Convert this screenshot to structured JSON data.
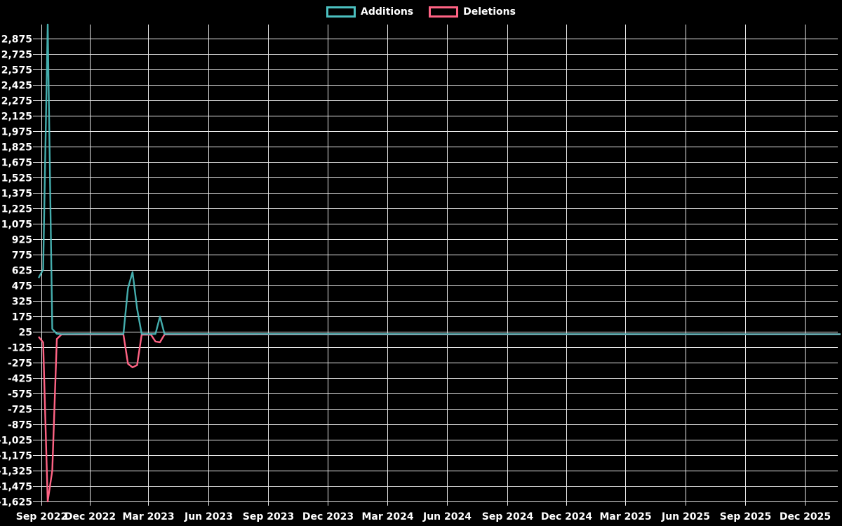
{
  "page": {
    "background": "#000000"
  },
  "legend": {
    "position": "top",
    "items": [
      {
        "label": "Additions",
        "color": "#4bc0c0"
      },
      {
        "label": "Deletions",
        "color": "#ff6384"
      }
    ]
  },
  "chart_data": {
    "type": "line",
    "title": "",
    "legend_position": "top",
    "grid": true,
    "background": "#000000",
    "grid_color": "#e8e8e8",
    "text_color": "#ffffff",
    "x_axis": {
      "type": "time",
      "start": "2022-09-14",
      "end": "2026-01-25",
      "ticks": [
        {
          "label": "Sep 2022",
          "date": "2022-09-18"
        },
        {
          "label": "Dec 2022",
          "date": "2022-12-01"
        },
        {
          "label": "Mar 2023",
          "date": "2023-03-01"
        },
        {
          "label": "Jun 2023",
          "date": "2023-06-01"
        },
        {
          "label": "Sep 2023",
          "date": "2023-09-01"
        },
        {
          "label": "Dec 2023",
          "date": "2023-12-01"
        },
        {
          "label": "Mar 2024",
          "date": "2024-03-01"
        },
        {
          "label": "Jun 2024",
          "date": "2024-06-01"
        },
        {
          "label": "Sep 2024",
          "date": "2024-09-01"
        },
        {
          "label": "Dec 2024",
          "date": "2024-12-01"
        },
        {
          "label": "Mar 2025",
          "date": "2025-03-01"
        },
        {
          "label": "Jun 2025",
          "date": "2025-06-01"
        },
        {
          "label": "Sep 2025",
          "date": "2025-09-01"
        },
        {
          "label": "Dec 2025",
          "date": "2025-12-01"
        }
      ]
    },
    "y_axis": {
      "min": -1625,
      "max": 3010,
      "tick_step": 150,
      "tick_labels": [
        "2,875",
        "2,725",
        "2,575",
        "2,425",
        "2,275",
        "2,125",
        "1,975",
        "1,825",
        "1,675",
        "1,525",
        "1,375",
        "1,225",
        "1,075",
        "925",
        "775",
        "625",
        "475",
        "325",
        "175",
        "25",
        "-125",
        "-275",
        "-425",
        "-575",
        "-725",
        "-875",
        "-1,025",
        "-1,175",
        "-1,325",
        "-1,475",
        "-1,625"
      ]
    },
    "series": [
      {
        "name": "Additions",
        "color": "#4bc0c0",
        "points": [
          [
            "2022-09-14",
            547
          ],
          [
            "2022-09-21",
            629
          ],
          [
            "2022-09-28",
            3010
          ],
          [
            "2022-10-05",
            52
          ],
          [
            "2022-10-12",
            4
          ],
          [
            "2022-10-19",
            1
          ],
          [
            "2023-01-22",
            2
          ],
          [
            "2023-01-29",
            448
          ],
          [
            "2023-02-05",
            604
          ],
          [
            "2023-02-12",
            249
          ],
          [
            "2023-02-19",
            3
          ],
          [
            "2023-03-05",
            2
          ],
          [
            "2023-03-12",
            2
          ],
          [
            "2023-03-19",
            172
          ],
          [
            "2023-03-26",
            2
          ],
          [
            "2026-01-25",
            0
          ]
        ]
      },
      {
        "name": "Deletions",
        "color": "#ff6384",
        "points": [
          [
            "2022-09-14",
            -24
          ],
          [
            "2022-09-21",
            -80
          ],
          [
            "2022-09-28",
            -1625
          ],
          [
            "2022-10-05",
            -1325
          ],
          [
            "2022-10-12",
            -45
          ],
          [
            "2022-10-19",
            -2
          ],
          [
            "2023-01-22",
            -2
          ],
          [
            "2023-01-29",
            -287
          ],
          [
            "2023-02-05",
            -322
          ],
          [
            "2023-02-12",
            -300
          ],
          [
            "2023-02-19",
            -4
          ],
          [
            "2023-03-05",
            -3
          ],
          [
            "2023-03-12",
            -70
          ],
          [
            "2023-03-19",
            -77
          ],
          [
            "2023-03-26",
            -2
          ],
          [
            "2026-01-25",
            0
          ]
        ]
      }
    ]
  }
}
